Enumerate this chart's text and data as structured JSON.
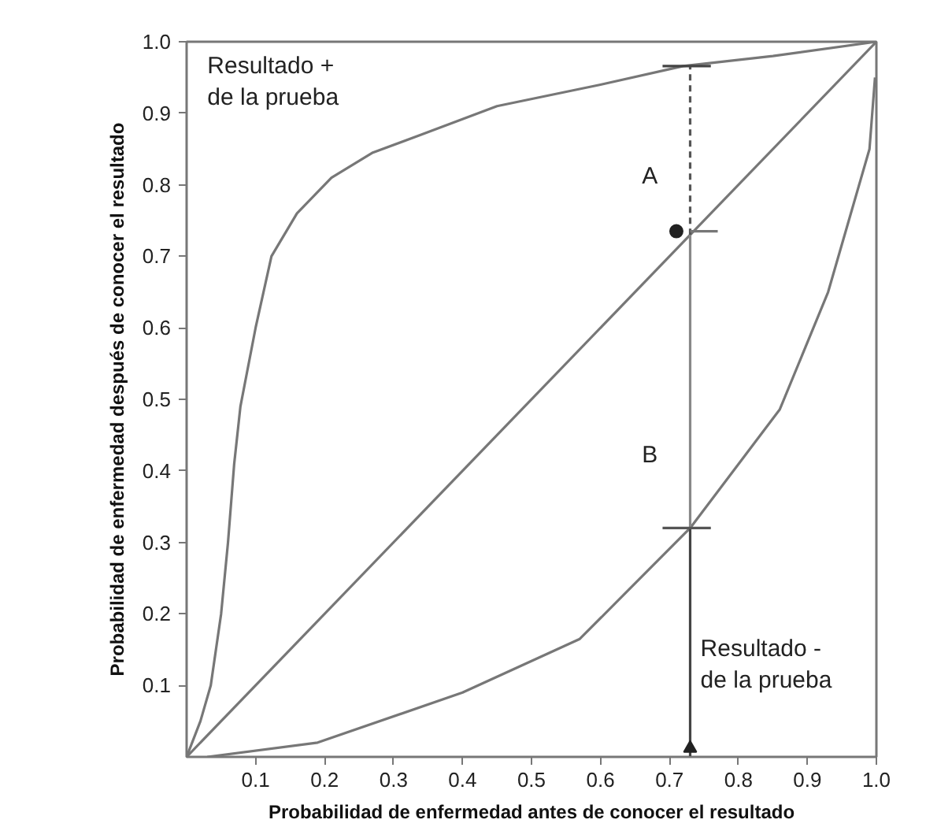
{
  "chart_data": {
    "type": "line",
    "xlabel": "Probabilidad de enfermedad antes de conocer el resultado",
    "ylabel": "Probabilidad de enfermedad después de conocer el resultado",
    "xlim": [
      0,
      1
    ],
    "ylim": [
      0,
      1
    ],
    "xticks": [
      0.1,
      0.2,
      0.3,
      0.4,
      0.5,
      0.6,
      0.7,
      0.8,
      0.9,
      {
        "value": 1,
        "label": "1.0"
      }
    ],
    "yticks": [
      0.1,
      0.2,
      0.3,
      0.4,
      0.5,
      0.6,
      0.7,
      0.8,
      0.9,
      {
        "value": 1,
        "label": "1.0"
      }
    ],
    "grid": false,
    "series": [
      {
        "color": "#777777",
        "x": [
          0,
          0.02,
          0.035,
          0.05,
          0.06,
          0.069,
          0.078,
          0.1,
          0.123,
          0.16,
          0.21,
          0.27,
          0.34,
          0.45,
          0.6,
          0.72,
          0.85,
          1
        ],
        "values": [
          0,
          0.05,
          0.1,
          0.2,
          0.3,
          0.41,
          0.49,
          0.6,
          0.7,
          0.76,
          0.81,
          0.845,
          0.87,
          0.91,
          0.94,
          0.966,
          0.98,
          1
        ],
        "marker": "none",
        "line_style": "solid"
      },
      {
        "color": "#777777",
        "x": [
          0,
          1
        ],
        "values": [
          0,
          1
        ],
        "marker": "none",
        "line_style": "solid"
      },
      {
        "color": "#777777",
        "x": [
          0.03,
          0.19,
          0.4,
          0.57,
          0.73,
          0.86,
          0.93,
          0.96,
          0.99,
          0.998
        ],
        "values": [
          0,
          0.02,
          0.09,
          0.165,
          0.32,
          0.486,
          0.65,
          0.75,
          0.85,
          0.95
        ],
        "marker": "none",
        "line_style": "solid"
      },
      {
        "color": "#555555",
        "x": [
          0.73,
          0.73
        ],
        "values": [
          0.73,
          0.966
        ],
        "marker": "none",
        "line_style": "dashed"
      },
      {
        "color": "#888888",
        "x": [
          0.73,
          0.73
        ],
        "values": [
          0.32,
          0.73
        ],
        "marker": "none",
        "line_style": "solid"
      },
      {
        "color": "#444444",
        "x": [
          0.73,
          0.73
        ],
        "values": [
          0,
          0.32
        ],
        "marker": "none",
        "line_style": "solid"
      },
      {
        "color": "#444444",
        "x": [
          0.69,
          0.76
        ],
        "values": [
          0.966,
          0.966
        ],
        "marker": "none",
        "line_style": "solid"
      },
      {
        "color": "#777777",
        "x": [
          0.73,
          0.77
        ],
        "values": [
          0.735,
          0.735
        ],
        "marker": "none",
        "line_style": "solid"
      },
      {
        "color": "#555555",
        "x": [
          0.69,
          0.76
        ],
        "values": [
          0.32,
          0.32
        ],
        "marker": "none",
        "line_style": "solid"
      },
      {
        "type": "scatter",
        "color": "#222222",
        "x": [
          0.71
        ],
        "values": [
          0.735
        ],
        "marker": "circle"
      },
      {
        "type": "scatter",
        "color": "#222222",
        "x": [
          0.73
        ],
        "values": [
          0.012
        ],
        "marker": "triangle"
      }
    ],
    "annotations": [
      "Resultado +\nde la prueba",
      "A",
      "B",
      "Resultado -\nde la prueba"
    ]
  }
}
